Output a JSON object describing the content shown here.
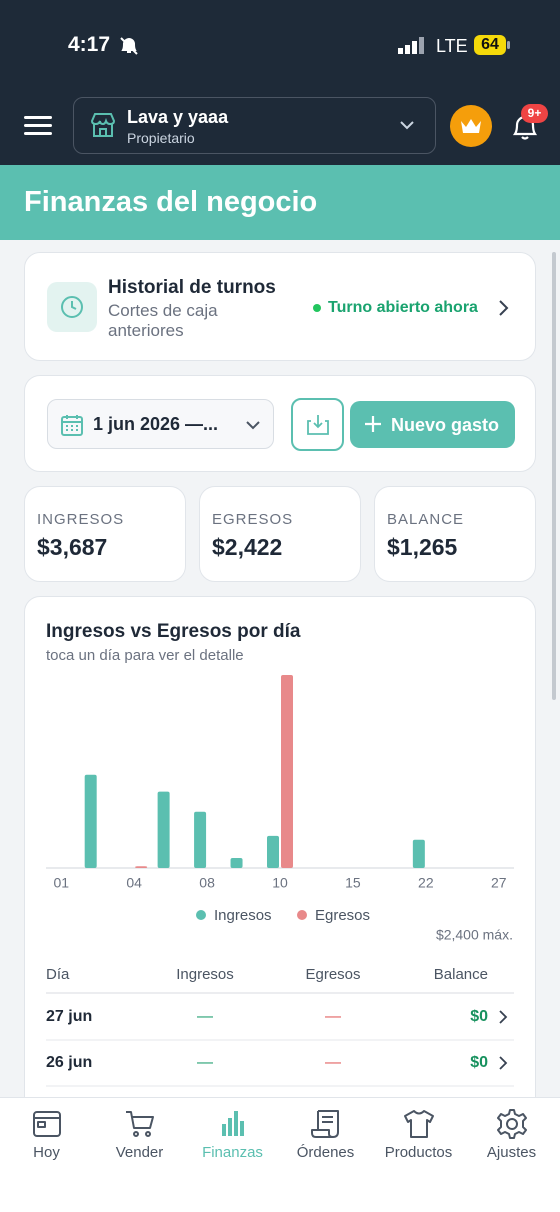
{
  "status_bar": {
    "time": "4:17",
    "network": "LTE",
    "battery": "64"
  },
  "header": {
    "business_name": "Lava y yaaa",
    "role": "Propietario",
    "notifications_badge": "9+"
  },
  "page_title": "Finanzas del negocio",
  "shift_card": {
    "title": "Historial de turnos",
    "subtitle": "Cortes de caja anteriores",
    "status": "Turno abierto ahora"
  },
  "toolbar": {
    "date_range": "1 jun 2026 —...",
    "new_expense_button": "Nuevo gasto"
  },
  "stats": [
    {
      "label": "INGRESOS",
      "value": "$3,687"
    },
    {
      "label": "EGRESOS",
      "value": "$2,422"
    },
    {
      "label": "BALANCE",
      "value": "$1,265"
    }
  ],
  "chart_data": {
    "type": "bar",
    "title": "Ingresos vs Egresos por día",
    "subtitle": "toca un día para ver el detalle",
    "categories": [
      "01",
      null,
      "04",
      null,
      "08",
      null,
      "10",
      null,
      "15",
      null,
      "22",
      null,
      "27"
    ],
    "series": [
      {
        "name": "Ingresos",
        "color": "#5bbfb0",
        "values": [
          0,
          1160,
          0,
          950,
          700,
          125,
          400,
          0,
          0,
          0,
          352,
          0,
          0
        ]
      },
      {
        "name": "Egresos",
        "color": "#e8898a",
        "values": [
          0,
          0,
          22,
          0,
          0,
          0,
          2400,
          0,
          0,
          0,
          0,
          0,
          0
        ]
      }
    ],
    "ylim": [
      0,
      2400
    ],
    "max_label": "$2,400 máx.",
    "grid": false
  },
  "table": {
    "columns": [
      "Día",
      "Ingresos",
      "Egresos",
      "Balance"
    ],
    "rows": [
      [
        "27 jun",
        "—",
        "—",
        "$0"
      ],
      [
        "26 jun",
        "—",
        "—",
        "$0"
      ]
    ]
  },
  "nav": {
    "active": 2,
    "items": [
      {
        "label": "Hoy"
      },
      {
        "label": "Vender"
      },
      {
        "label": "Finanzas"
      },
      {
        "label": "Órdenes"
      },
      {
        "label": "Productos"
      },
      {
        "label": "Ajustes"
      }
    ]
  }
}
